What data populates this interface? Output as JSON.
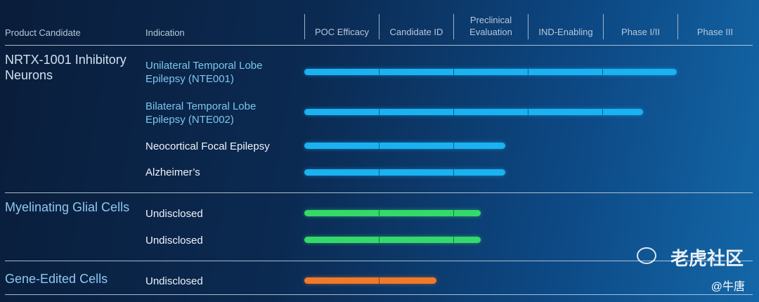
{
  "headers": {
    "product_candidate": "Product Candidate",
    "indication": "Indication"
  },
  "chart_data": {
    "type": "bar",
    "orientation": "horizontal-stacked-pipeline",
    "phases": [
      "POC Efficacy",
      "Candidate ID",
      "Preclinical Evaluation",
      "IND-Enabling",
      "Phase I/II",
      "Phase III"
    ],
    "groups": [
      {
        "name": "NRTX-1001 Inhibitory Neurons",
        "color": "#1ab2f0",
        "rows": [
          {
            "indication": "Unilateral Temporal Lobe Epilepsy (NTE001)",
            "progress": 5.0
          },
          {
            "indication": "Bilateral Temporal Lobe Epilepsy (NTE002)",
            "progress": 4.55
          },
          {
            "indication": "Neocortical Focal Epilepsy",
            "progress": 2.7
          },
          {
            "indication": "Alzheimer’s",
            "progress": 2.7
          }
        ]
      },
      {
        "name": "Myelinating Glial Cells",
        "color": "#34d96a",
        "rows": [
          {
            "indication": "Undisclosed",
            "progress": 2.37
          },
          {
            "indication": "Undisclosed",
            "progress": 2.37
          }
        ]
      },
      {
        "name": "Gene-Edited Cells",
        "color": "#f0792a",
        "rows": [
          {
            "indication": "Undisclosed",
            "progress": 1.77
          }
        ]
      }
    ]
  },
  "watermark": {
    "site": "老虎社区",
    "handle": "@牛唐"
  }
}
